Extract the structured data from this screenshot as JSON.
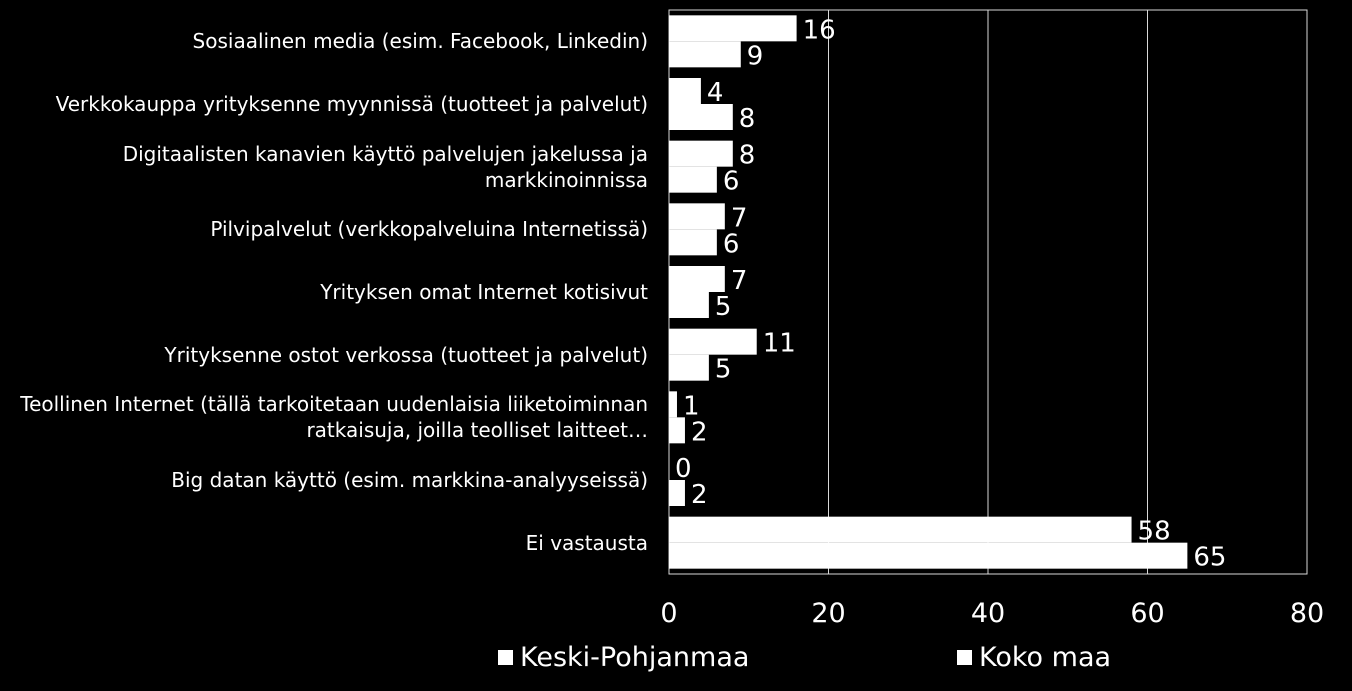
{
  "chart_data": {
    "type": "bar",
    "orientation": "horizontal",
    "categories": [
      "Sosiaalinen media (esim. Facebook, Linkedin)",
      "Verkkokauppa yrityksenne myynnissä (tuotteet ja palvelut)",
      "Digitaalisten kanavien käyttö palvelujen jakelussa ja markkinoinnissa",
      "Pilvipalvelut  (verkkopalveluina Internetissä)",
      "Yrityksen omat Internet kotisivut",
      "Yrityksenne ostot verkossa (tuotteet ja palvelut)",
      "Teollinen Internet (tällä tarkoitetaan uudenlaisia liiketoiminnan ratkaisuja, joilla teolliset laitteet…",
      "Big datan käyttö (esim. markkina-analyyseissä)",
      "Ei vastausta"
    ],
    "series": [
      {
        "name": "Keski-Pohjanmaa",
        "values": [
          16,
          4,
          8,
          7,
          7,
          11,
          1,
          0,
          58
        ]
      },
      {
        "name": "Koko maa",
        "values": [
          9,
          8,
          6,
          6,
          5,
          5,
          2,
          2,
          65
        ]
      }
    ],
    "xlim": [
      0,
      80
    ],
    "xticks": [
      "0",
      "20",
      "40",
      "60",
      "80"
    ],
    "grid": true,
    "legend_position": "bottom",
    "colors": {
      "background": "#000000",
      "bars": "#ffffff",
      "text": "#ffffff"
    }
  }
}
